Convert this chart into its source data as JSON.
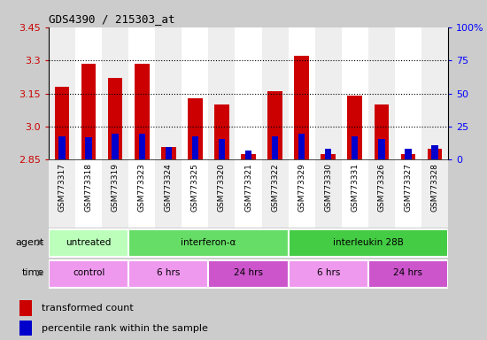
{
  "title": "GDS4390 / 215303_at",
  "samples": [
    "GSM773317",
    "GSM773318",
    "GSM773319",
    "GSM773323",
    "GSM773324",
    "GSM773325",
    "GSM773320",
    "GSM773321",
    "GSM773322",
    "GSM773329",
    "GSM773330",
    "GSM773331",
    "GSM773326",
    "GSM773327",
    "GSM773328"
  ],
  "red_values": [
    3.18,
    3.285,
    3.22,
    3.285,
    2.91,
    3.13,
    3.1,
    2.875,
    3.16,
    3.32,
    2.875,
    3.14,
    3.1,
    2.875,
    2.9
  ],
  "blue_percentile": [
    18,
    17,
    20,
    20,
    10,
    18,
    16,
    7,
    18,
    20,
    8,
    18,
    16,
    8,
    11
  ],
  "ymin": 2.85,
  "ymax": 3.45,
  "yticks_left": [
    2.85,
    3.0,
    3.15,
    3.3,
    3.45
  ],
  "yticks_right": [
    0,
    25,
    50,
    75,
    100
  ],
  "bar_color_red": "#cc0000",
  "bar_color_blue": "#0000cc",
  "bar_width": 0.55,
  "agent_groups": [
    {
      "label": "untreated",
      "start": 0,
      "end": 3,
      "color": "#bbffbb"
    },
    {
      "label": "interferon-α",
      "start": 3,
      "end": 9,
      "color": "#66dd66"
    },
    {
      "label": "interleukin 28B",
      "start": 9,
      "end": 15,
      "color": "#44cc44"
    }
  ],
  "time_groups": [
    {
      "label": "control",
      "start": 0,
      "end": 3,
      "color": "#ee99ee"
    },
    {
      "label": "6 hrs",
      "start": 3,
      "end": 6,
      "color": "#ee99ee"
    },
    {
      "label": "24 hrs",
      "start": 6,
      "end": 9,
      "color": "#cc55cc"
    },
    {
      "label": "6 hrs",
      "start": 9,
      "end": 12,
      "color": "#ee99ee"
    },
    {
      "label": "24 hrs",
      "start": 12,
      "end": 15,
      "color": "#cc55cc"
    }
  ],
  "legend_red": "transformed count",
  "legend_blue": "percentile rank within the sample",
  "bg_color": "#cccccc",
  "col_bg_even": "#dddddd",
  "col_bg_odd": "#eeeeee"
}
